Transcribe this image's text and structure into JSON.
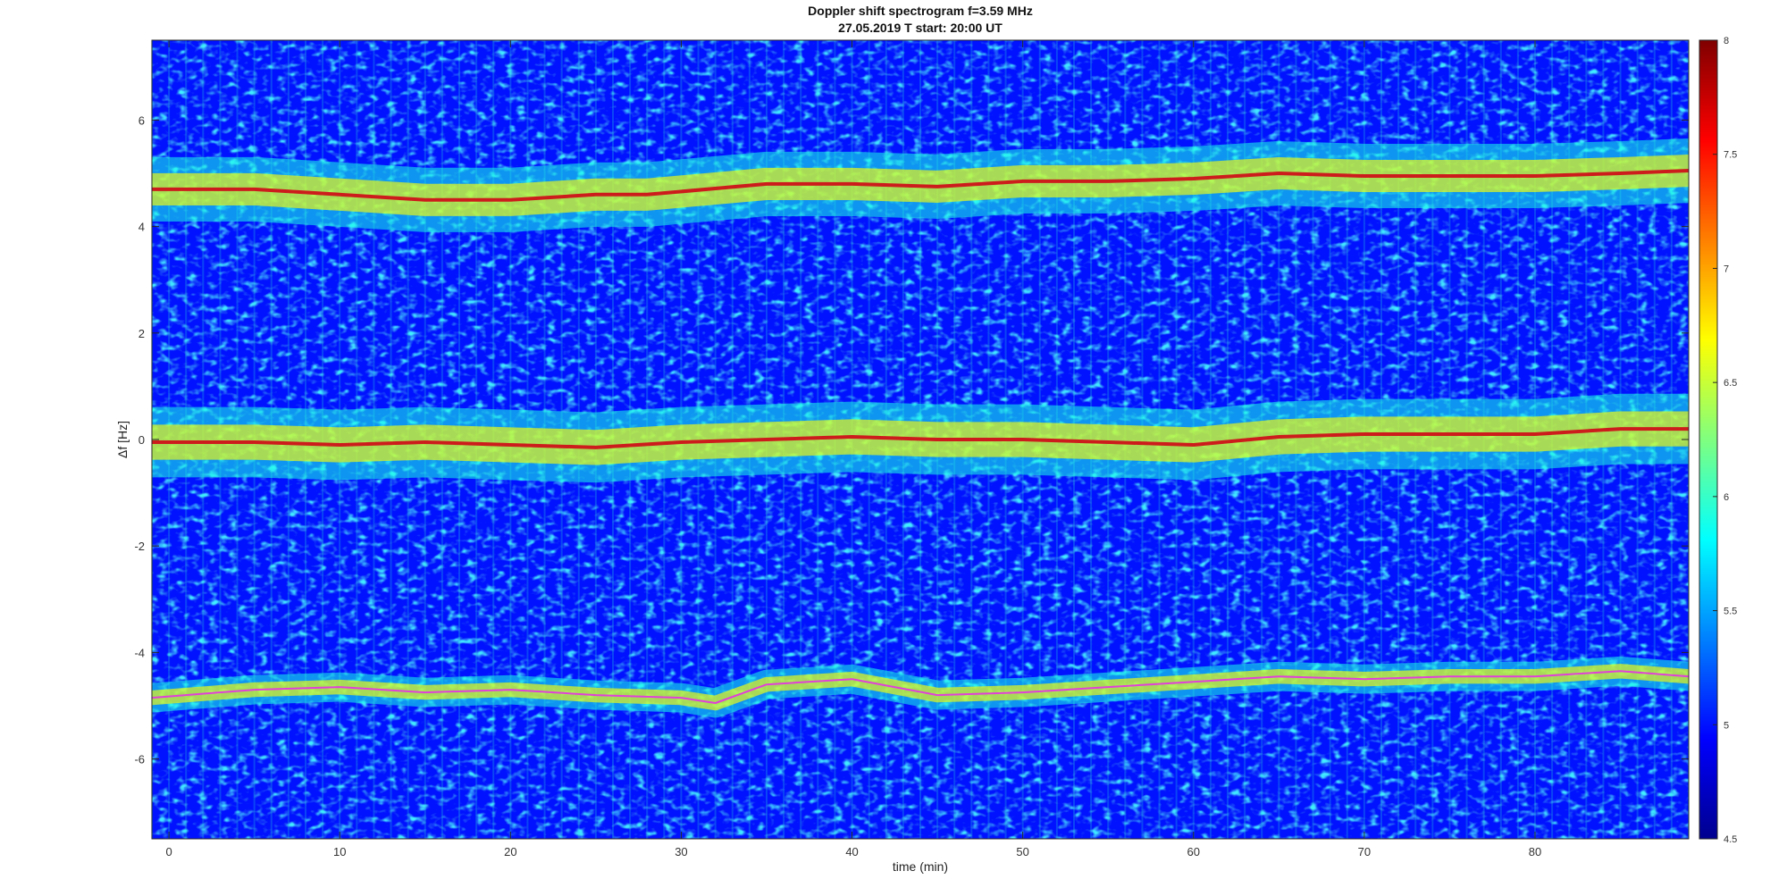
{
  "chart_data": {
    "type": "heatmap",
    "title": "Doppler shift spectrogram f=3.59 MHz",
    "subtitle": "27.05.2019   T start: 20:00 UT",
    "xlabel": "time (min)",
    "ylabel": "Δf [Hz]",
    "xlim": [
      -1,
      89
    ],
    "ylim": [
      -7.5,
      7.5
    ],
    "xticks": [
      0,
      10,
      20,
      30,
      40,
      50,
      60,
      70,
      80
    ],
    "yticks": [
      -6,
      -4,
      -2,
      0,
      2,
      4,
      6
    ],
    "colorbar": {
      "limits": [
        4.5,
        8
      ],
      "ticks": [
        4.5,
        5,
        5.5,
        6,
        6.5,
        7,
        7.5,
        8
      ],
      "colormap": "jet"
    },
    "grid": false,
    "background_level": 5.0,
    "traces": [
      {
        "x": [
          -1,
          5,
          10,
          15,
          20,
          25,
          28,
          35,
          40,
          45,
          50,
          55,
          60,
          65,
          70,
          75,
          80,
          85,
          89
        ],
        "y": [
          4.7,
          4.7,
          4.6,
          4.5,
          4.5,
          4.6,
          4.6,
          4.8,
          4.8,
          4.75,
          4.85,
          4.85,
          4.9,
          5.0,
          4.95,
          4.95,
          4.95,
          5.0,
          5.05
        ],
        "peak_level": 8.0,
        "halo_width_hz": 0.55,
        "color_hex": "#cc1c1c"
      },
      {
        "x": [
          -1,
          5,
          10,
          15,
          20,
          25,
          30,
          35,
          40,
          45,
          50,
          55,
          60,
          65,
          70,
          75,
          80,
          85,
          89
        ],
        "y": [
          -0.05,
          -0.05,
          -0.1,
          -0.05,
          -0.1,
          -0.15,
          -0.05,
          0.0,
          0.05,
          0.0,
          0.0,
          -0.05,
          -0.1,
          0.05,
          0.1,
          0.1,
          0.1,
          0.2,
          0.2
        ],
        "peak_level": 8.0,
        "halo_width_hz": 0.6,
        "color_hex": "#cc1c1c"
      },
      {
        "x": [
          -1,
          5,
          10,
          15,
          20,
          25,
          30,
          32,
          35,
          40,
          45,
          50,
          55,
          60,
          65,
          70,
          75,
          80,
          85,
          89
        ],
        "y": [
          -4.85,
          -4.7,
          -4.65,
          -4.75,
          -4.7,
          -4.8,
          -4.85,
          -4.95,
          -4.6,
          -4.5,
          -4.8,
          -4.75,
          -4.65,
          -4.55,
          -4.45,
          -4.5,
          -4.45,
          -4.45,
          -4.35,
          -4.45
        ],
        "peak_level": 6.6,
        "halo_width_hz": 0.25,
        "color_hex": "#e040d8"
      }
    ]
  }
}
